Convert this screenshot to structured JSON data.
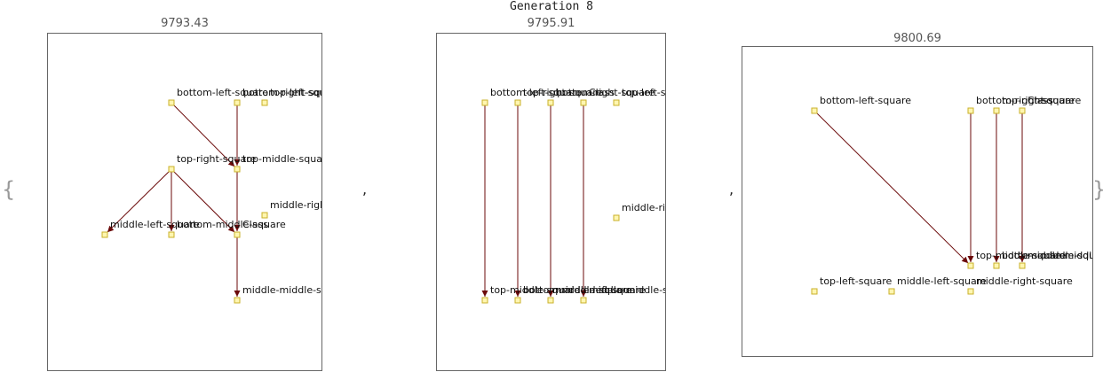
{
  "title": "Generation 8",
  "open_brace": "{",
  "close_brace": "}",
  "separator": ",",
  "panels": [
    {
      "score": "9793.43",
      "nodes": [
        {
          "id": "bottom-left-square",
          "label": "bottom-left-square"
        },
        {
          "id": "bottom-right-square",
          "label": "bottom-right-square"
        },
        {
          "id": "top-left-square",
          "label": "top-left-square"
        },
        {
          "id": "top-right-square",
          "label": "top-right-square"
        },
        {
          "id": "top-middle-square",
          "label": "top-middle-square"
        },
        {
          "id": "middle-right-square",
          "label": "middle-right-square"
        },
        {
          "id": "middle-left-square",
          "label": "middle-left-square"
        },
        {
          "id": "bottom-middle-square",
          "label": "bottom-middle-square"
        },
        {
          "id": "Class",
          "label": "Class"
        },
        {
          "id": "middle-middle-square",
          "label": "middle-middle-square"
        }
      ],
      "edges": [
        [
          "bottom-left-square",
          "top-middle-square"
        ],
        [
          "bottom-right-square",
          "top-middle-square"
        ],
        [
          "top-right-square",
          "middle-left-square"
        ],
        [
          "top-right-square",
          "bottom-middle-square"
        ],
        [
          "top-right-square",
          "Class"
        ],
        [
          "top-middle-square",
          "Class"
        ],
        [
          "Class",
          "middle-middle-square"
        ]
      ]
    },
    {
      "score": "9795.91",
      "nodes": [
        {
          "id": "bottom-left-square",
          "label": "bottom-left-square"
        },
        {
          "id": "top-right-square",
          "label": "top-right-square"
        },
        {
          "id": "bottom-right-square",
          "label": "bottom-right-square"
        },
        {
          "id": "Class",
          "label": "Class"
        },
        {
          "id": "top-left-square",
          "label": "top-left-square"
        },
        {
          "id": "middle-right-square",
          "label": "middle-right-square"
        },
        {
          "id": "top-middle-square",
          "label": "top-middle-square"
        },
        {
          "id": "bottom-middle-square",
          "label": "bottom-middle-square"
        },
        {
          "id": "middle-left-square",
          "label": "middle-left-square"
        },
        {
          "id": "middle-middle-square",
          "label": "middle-middle-square"
        }
      ],
      "edges": [
        [
          "bottom-left-square",
          "top-middle-square"
        ],
        [
          "top-right-square",
          "bottom-middle-square"
        ],
        [
          "bottom-right-square",
          "middle-left-square"
        ],
        [
          "Class",
          "middle-middle-square"
        ]
      ]
    },
    {
      "score": "9800.69",
      "nodes": [
        {
          "id": "bottom-left-square",
          "label": "bottom-left-square"
        },
        {
          "id": "bottom-right-square",
          "label": "bottom-right-square"
        },
        {
          "id": "top-right-square",
          "label": "top-right-square"
        },
        {
          "id": "Class",
          "label": "Class"
        },
        {
          "id": "top-middle-square",
          "label": "top-middle-square"
        },
        {
          "id": "bottom-middle-square",
          "label": "bottom-middle-square"
        },
        {
          "id": "middle-middle-square",
          "label": "middle-middle-square"
        },
        {
          "id": "top-left-square",
          "label": "top-left-square"
        },
        {
          "id": "middle-left-square",
          "label": "middle-left-square"
        },
        {
          "id": "middle-right-square",
          "label": "middle-right-square"
        }
      ],
      "edges": [
        [
          "bottom-left-square",
          "top-middle-square"
        ],
        [
          "bottom-right-square",
          "top-middle-square"
        ],
        [
          "top-right-square",
          "bottom-middle-square"
        ],
        [
          "Class",
          "middle-middle-square"
        ]
      ]
    }
  ]
}
